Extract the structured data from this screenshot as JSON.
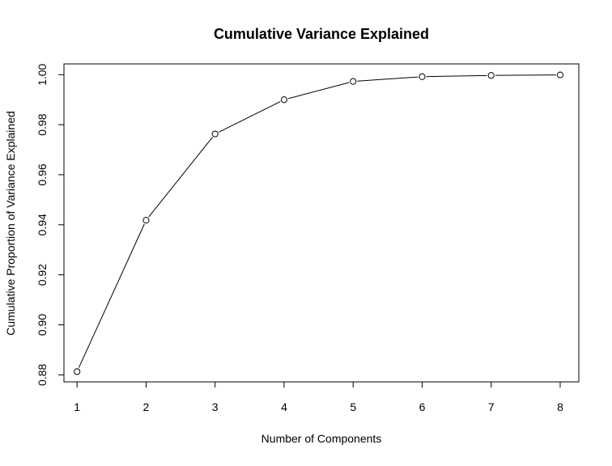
{
  "chart_data": {
    "type": "line",
    "title": "Cumulative Variance Explained",
    "xlabel": "Number of Components",
    "ylabel": "Cumulative Proportion of Variance Explained",
    "x": [
      1,
      2,
      3,
      4,
      5,
      6,
      7,
      8
    ],
    "y": [
      0.8813,
      0.9418,
      0.9763,
      0.99,
      0.9973,
      0.9992,
      0.9997,
      0.9999
    ],
    "xlim": [
      0.81,
      8.27
    ],
    "ylim": [
      0.8772,
      1.0043
    ],
    "xticks": [
      1,
      2,
      3,
      4,
      5,
      6,
      7,
      8
    ],
    "xtick_labels": [
      "1",
      "2",
      "3",
      "4",
      "5",
      "6",
      "7",
      "8"
    ],
    "yticks": [
      0.88,
      0.9,
      0.92,
      0.94,
      0.96,
      0.98,
      1.0
    ],
    "ytick_labels": [
      "0.88",
      "0.90",
      "0.92",
      "0.94",
      "0.96",
      "0.98",
      "1.00"
    ],
    "marker": "open-circle",
    "grid": false,
    "legend": "none",
    "colors": {
      "line": "#000000",
      "marker_fill": "#ffffff",
      "axis": "#000000",
      "background": "#ffffff"
    }
  }
}
